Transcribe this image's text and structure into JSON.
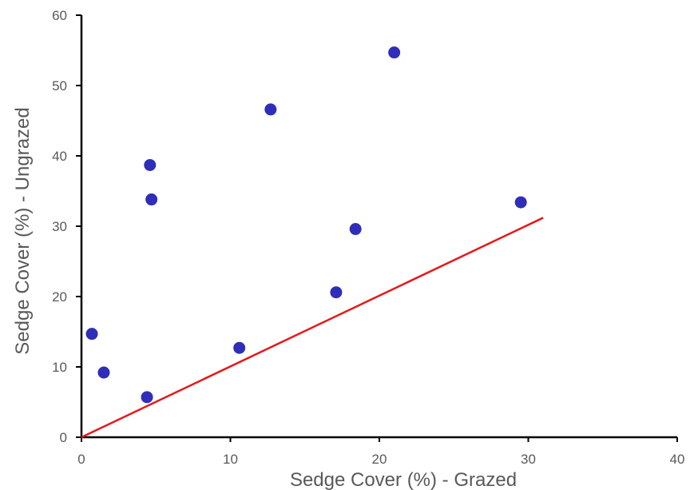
{
  "chart_data": {
    "type": "scatter",
    "title": "",
    "xlabel": "Sedge Cover (%) - Grazed",
    "ylabel": "Sedge Cover (%) - Ungrazed",
    "xlim": [
      0,
      40
    ],
    "ylim": [
      0,
      60
    ],
    "x_ticks": [
      0,
      10,
      20,
      30,
      40
    ],
    "y_ticks": [
      0,
      10,
      20,
      30,
      40,
      50,
      60
    ],
    "grid": false,
    "legend": "none",
    "series": [
      {
        "marker_color": "#2e2eb8",
        "points": [
          {
            "x": 0.7,
            "y": 14.7
          },
          {
            "x": 1.5,
            "y": 9.2
          },
          {
            "x": 4.4,
            "y": 5.7
          },
          {
            "x": 4.6,
            "y": 38.7
          },
          {
            "x": 4.7,
            "y": 33.8
          },
          {
            "x": 10.6,
            "y": 12.7
          },
          {
            "x": 12.7,
            "y": 46.6
          },
          {
            "x": 17.1,
            "y": 20.6
          },
          {
            "x": 18.4,
            "y": 29.6
          },
          {
            "x": 21.0,
            "y": 54.7
          },
          {
            "x": 29.5,
            "y": 33.4
          }
        ]
      }
    ],
    "reference_line": {
      "color": "#e31a1c",
      "from": {
        "x": 0,
        "y": 0
      },
      "to": {
        "x": 31.0,
        "y": 31.2
      }
    },
    "axis_color": "#000000"
  }
}
